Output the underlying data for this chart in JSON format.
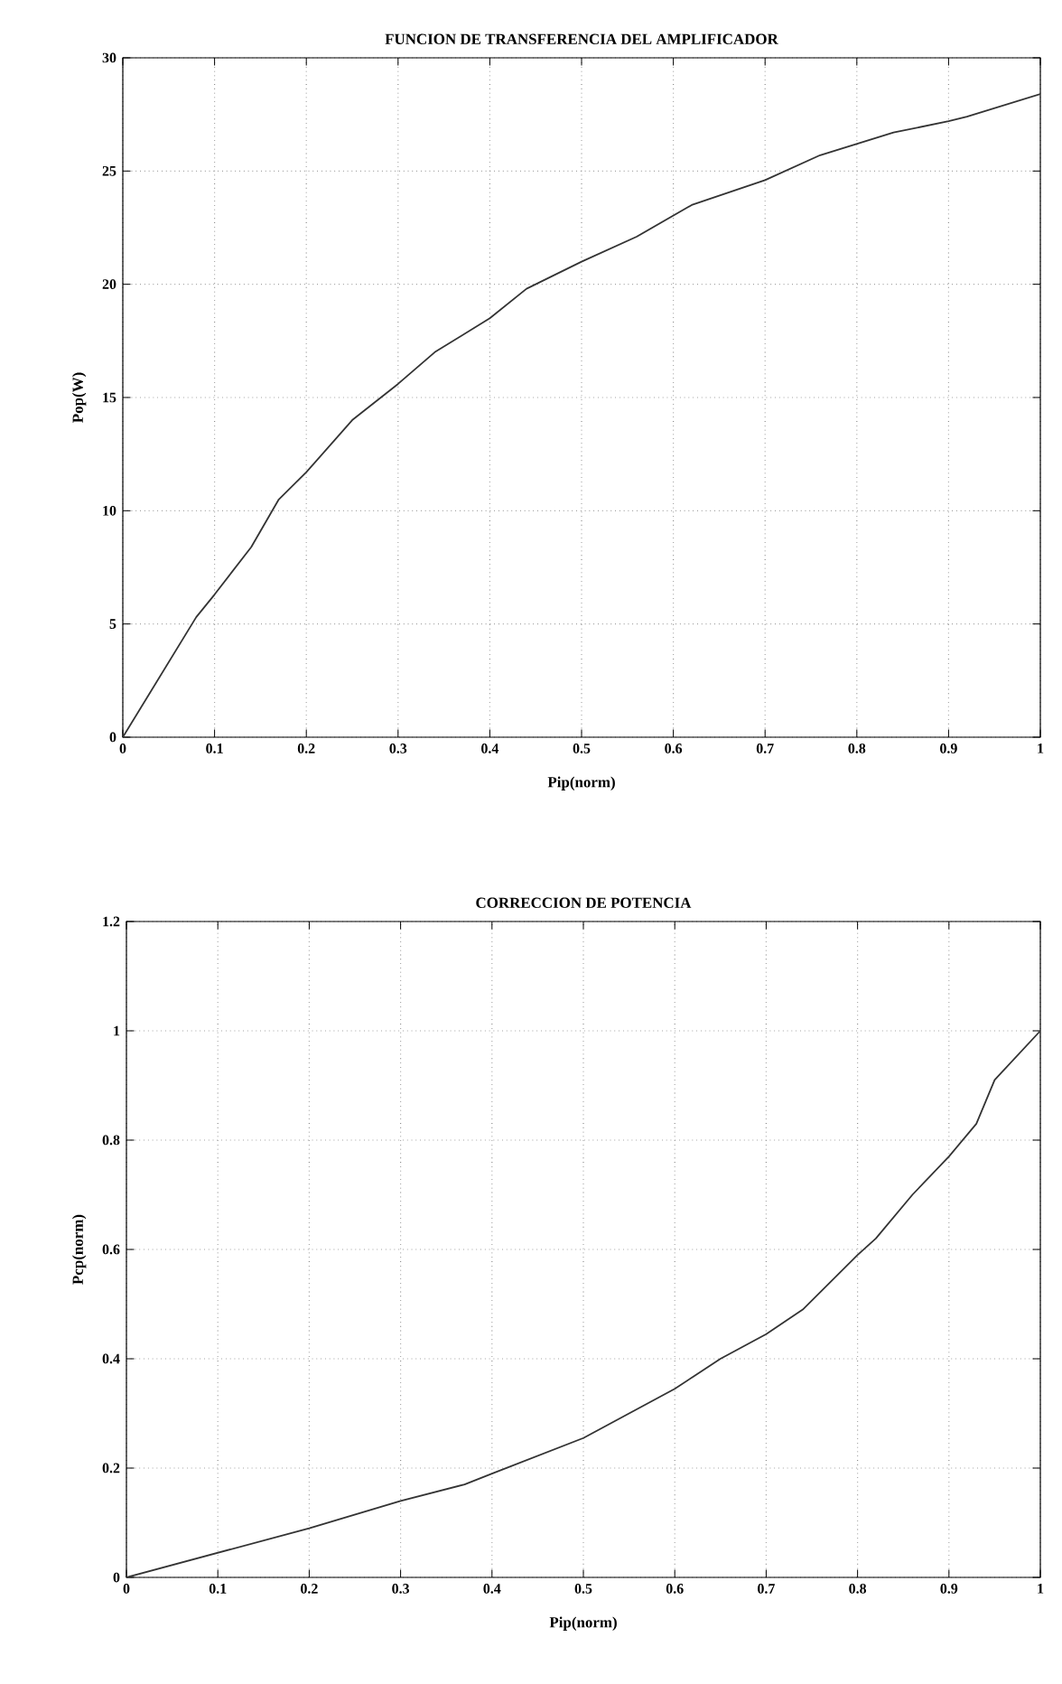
{
  "chart_data": [
    {
      "type": "line",
      "title": "FUNCION DE TRANSFERENCIA DEL AMPLIFICADOR",
      "xlabel": "Pip(norm)",
      "ylabel": "Pop(W)",
      "color": "#333333",
      "grid": true,
      "x": [
        0,
        0.08,
        0.1,
        0.14,
        0.17,
        0.2,
        0.25,
        0.3,
        0.34,
        0.4,
        0.44,
        0.5,
        0.56,
        0.62,
        0.7,
        0.76,
        0.84,
        0.9,
        0.92,
        1.0
      ],
      "values": [
        0,
        5.3,
        6.3,
        8.4,
        10.5,
        11.7,
        14,
        15.6,
        17,
        18.5,
        19.8,
        21,
        22.1,
        23.5,
        24.6,
        25.7,
        26.7,
        27.2,
        27.4,
        28.4
      ],
      "xlim": [
        0,
        1
      ],
      "ylim": [
        0,
        30
      ],
      "xticks": [
        0,
        0.1,
        0.2,
        0.3,
        0.4,
        0.5,
        0.6,
        0.7,
        0.8,
        0.9,
        1
      ],
      "yticks": [
        0,
        5,
        10,
        15,
        20,
        25,
        30
      ]
    },
    {
      "type": "line",
      "title": "CORRECCION DE POTENCIA",
      "xlabel": "Pip(norm)",
      "ylabel": "Pcp(norm)",
      "color": "#333333",
      "grid": true,
      "x": [
        0,
        0.1,
        0.2,
        0.3,
        0.37,
        0.4,
        0.5,
        0.6,
        0.65,
        0.7,
        0.74,
        0.8,
        0.82,
        0.86,
        0.9,
        0.93,
        0.95,
        1.0
      ],
      "values": [
        0,
        0.045,
        0.09,
        0.14,
        0.17,
        0.19,
        0.255,
        0.345,
        0.4,
        0.445,
        0.49,
        0.59,
        0.62,
        0.7,
        0.77,
        0.83,
        0.91,
        1.0
      ],
      "xlim": [
        0,
        1
      ],
      "ylim": [
        0,
        1.2
      ],
      "xticks": [
        0,
        0.1,
        0.2,
        0.3,
        0.4,
        0.5,
        0.6,
        0.7,
        0.8,
        0.9,
        1
      ],
      "yticks": [
        0,
        0.2,
        0.4,
        0.6,
        0.8,
        1,
        1.2
      ]
    }
  ]
}
